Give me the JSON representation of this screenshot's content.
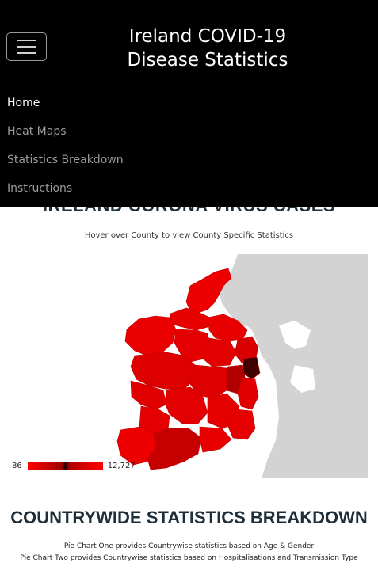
{
  "navbar": {
    "brand_line1": "Ireland COVID-19",
    "brand_line2": "Disease Statistics",
    "toggle_icon": "hamburger-menu-icon",
    "links": [
      {
        "label": "Home",
        "active": true
      },
      {
        "label": "Heat Maps",
        "active": false
      },
      {
        "label": "Statistics Breakdown",
        "active": false
      },
      {
        "label": "Instructions",
        "active": false
      }
    ]
  },
  "map_section": {
    "title": "IRELAND CORONA VIRUS CASES",
    "hint": "Hover over County to view County Specific Statistics",
    "legend": {
      "min": "86",
      "max": "12,727"
    },
    "colors": {
      "low": "#ff0000",
      "high": "#1a0000",
      "land": "#d3d3d3"
    }
  },
  "stats_section": {
    "title": "COUNTRYWIDE STATISTICS BREAKDOWN",
    "line1": "Pie Chart One provides Countrywise statistics based on Age & Gender",
    "line2": "Pie Chart Two provides Countrywise statistics based on Hospitalisations and Transmission Type"
  }
}
